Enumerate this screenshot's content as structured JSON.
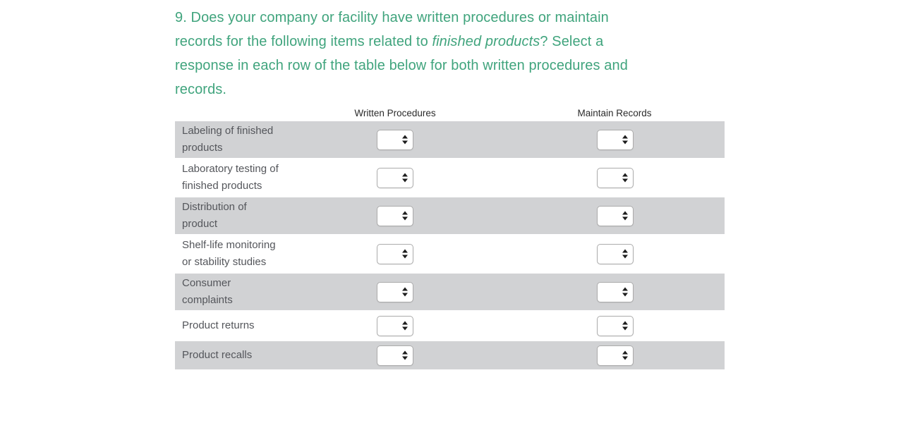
{
  "question": {
    "number": "9",
    "text_before": "9. Does your company or facility have written procedures or maintain\nrecords for the following items related to ",
    "italic_text": "finished products",
    "text_after": "? Select a\nresponse in each row of the table below for both written procedures and\nrecords."
  },
  "table": {
    "columns": [
      {
        "label": "Written Procedures"
      },
      {
        "label": "Maintain Records"
      }
    ],
    "rows": [
      {
        "label": "Labeling of finished\nproducts"
      },
      {
        "label": "Laboratory testing of\nfinished products"
      },
      {
        "label": "Distribution of\nproduct"
      },
      {
        "label": "Shelf-life monitoring\nor stability studies"
      },
      {
        "label": "Consumer\ncomplaints"
      },
      {
        "label": "Product returns"
      },
      {
        "label": "Product recalls"
      }
    ],
    "select_value": ""
  },
  "colors": {
    "question_green": "#40a47d",
    "row_stripe_gray": "#d1d2d4",
    "label_text": "#54565b",
    "header_text": "#2b2b2b"
  }
}
